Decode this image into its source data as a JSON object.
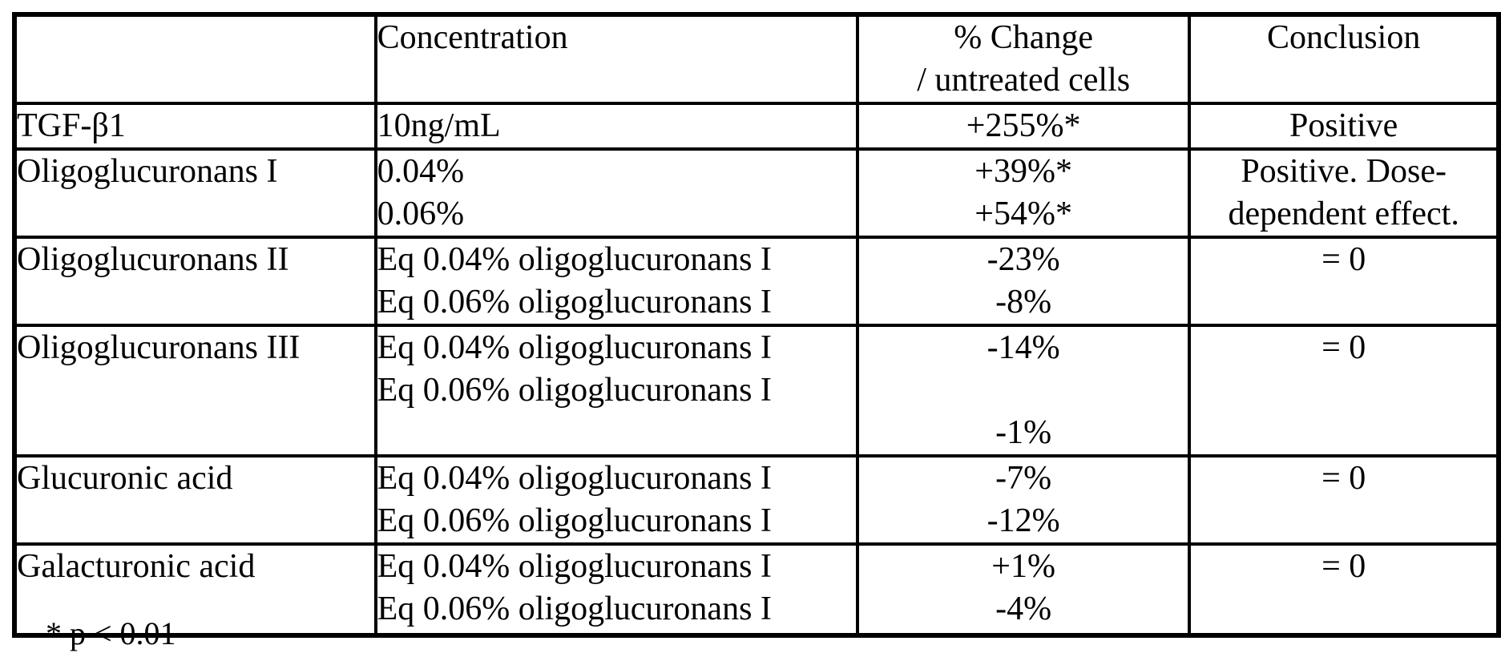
{
  "table": {
    "headers": {
      "substance": "",
      "concentration": "Concentration",
      "change": [
        "% Change",
        "/ untreated cells"
      ],
      "conclusion": "Conclusion"
    },
    "rows": [
      {
        "substance": "TGF-β1",
        "concentration": [
          "10ng/mL"
        ],
        "change": [
          "+255%*"
        ],
        "conclusion": [
          "Positive"
        ]
      },
      {
        "substance": "Oligoglucuronans I",
        "concentration": [
          "0.04%",
          "0.06%"
        ],
        "change": [
          "+39%*",
          "+54%*"
        ],
        "conclusion": [
          "Positive. Dose-",
          "dependent effect."
        ]
      },
      {
        "substance": "Oligoglucuronans II",
        "concentration": [
          "Eq 0.04% oligoglucuronans I",
          "Eq 0.06% oligoglucuronans I"
        ],
        "change": [
          "-23%",
          "-8%"
        ],
        "conclusion": [
          "= 0"
        ]
      },
      {
        "substance": "Oligoglucuronans III",
        "concentration": [
          "Eq 0.04% oligoglucuronans I",
          "Eq 0.06% oligoglucuronans I"
        ],
        "change": [
          "-14%",
          "",
          "-1%"
        ],
        "conclusion": [
          "= 0"
        ]
      },
      {
        "substance": "Glucuronic acid",
        "concentration": [
          "Eq 0.04% oligoglucuronans I",
          "Eq 0.06% oligoglucuronans I"
        ],
        "change": [
          "-7%",
          "-12%"
        ],
        "conclusion": [
          "= 0"
        ]
      },
      {
        "substance": "Galacturonic acid",
        "concentration": [
          "Eq 0.04% oligoglucuronans I",
          "Eq 0.06% oligoglucuronans I"
        ],
        "change": [
          "+1%",
          "-4%"
        ],
        "conclusion": [
          "= 0"
        ]
      }
    ],
    "footnote": "* p < 0.01",
    "colors": {
      "text": "#000000",
      "border": "#000000",
      "background": "#ffffff"
    }
  }
}
